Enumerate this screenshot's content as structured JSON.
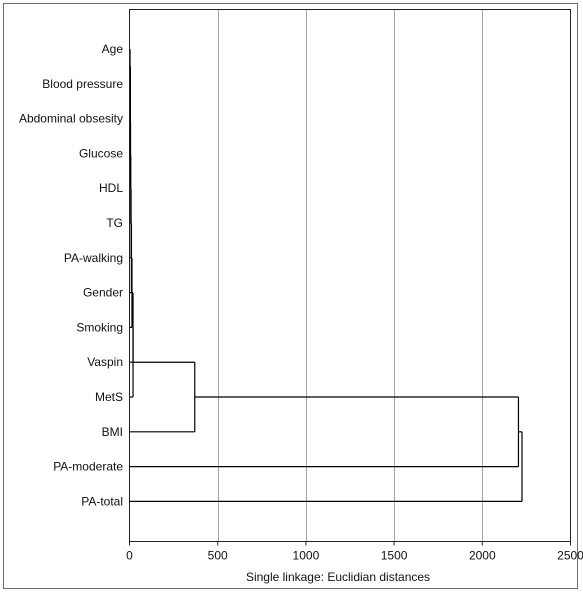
{
  "chart_data": {
    "type": "dendrogram",
    "orientation": "horizontal",
    "xlabel": "Single linkage: Euclidian distances",
    "xlim": [
      0,
      2500
    ],
    "xticks": [
      "0",
      "500",
      "1000",
      "1500",
      "2000",
      "2500"
    ],
    "xtick_values": [
      0,
      500,
      1000,
      1500,
      2000,
      2500
    ],
    "grid": true,
    "leaves": [
      "Age",
      "Blood pressure",
      "Abdominal obsesity",
      "Glucose",
      "HDL",
      "TG",
      "PA-walking",
      "Gender",
      "Smoking",
      "Vaspin",
      "MetS",
      "BMI",
      "PA-moderate",
      "PA-total"
    ],
    "merges": [
      {
        "a": "Age",
        "b": "Blood pressure",
        "height": 3
      },
      {
        "a": "c1",
        "b": "Abdominal obsesity",
        "height": 5
      },
      {
        "a": "c2",
        "b": "Glucose",
        "height": 5
      },
      {
        "a": "c3",
        "b": "HDL",
        "height": 6
      },
      {
        "a": "c4",
        "b": "TG",
        "height": 7
      },
      {
        "a": "c5",
        "b": "PA-walking",
        "height": 9
      },
      {
        "a": "c6",
        "b": "Gender",
        "height": 11
      },
      {
        "a": "c7",
        "b": "Smoking",
        "height": 14
      },
      {
        "a": "c8",
        "b": "Vaspin",
        "height": 20
      },
      {
        "a": "c9",
        "b": "MetS",
        "height": 20
      },
      {
        "a": "c10",
        "b": "BMI",
        "height": 370
      },
      {
        "a": "c11",
        "b": "PA-moderate",
        "height": 2205
      },
      {
        "a": "c12",
        "b": "PA-total",
        "height": 2225
      }
    ]
  }
}
